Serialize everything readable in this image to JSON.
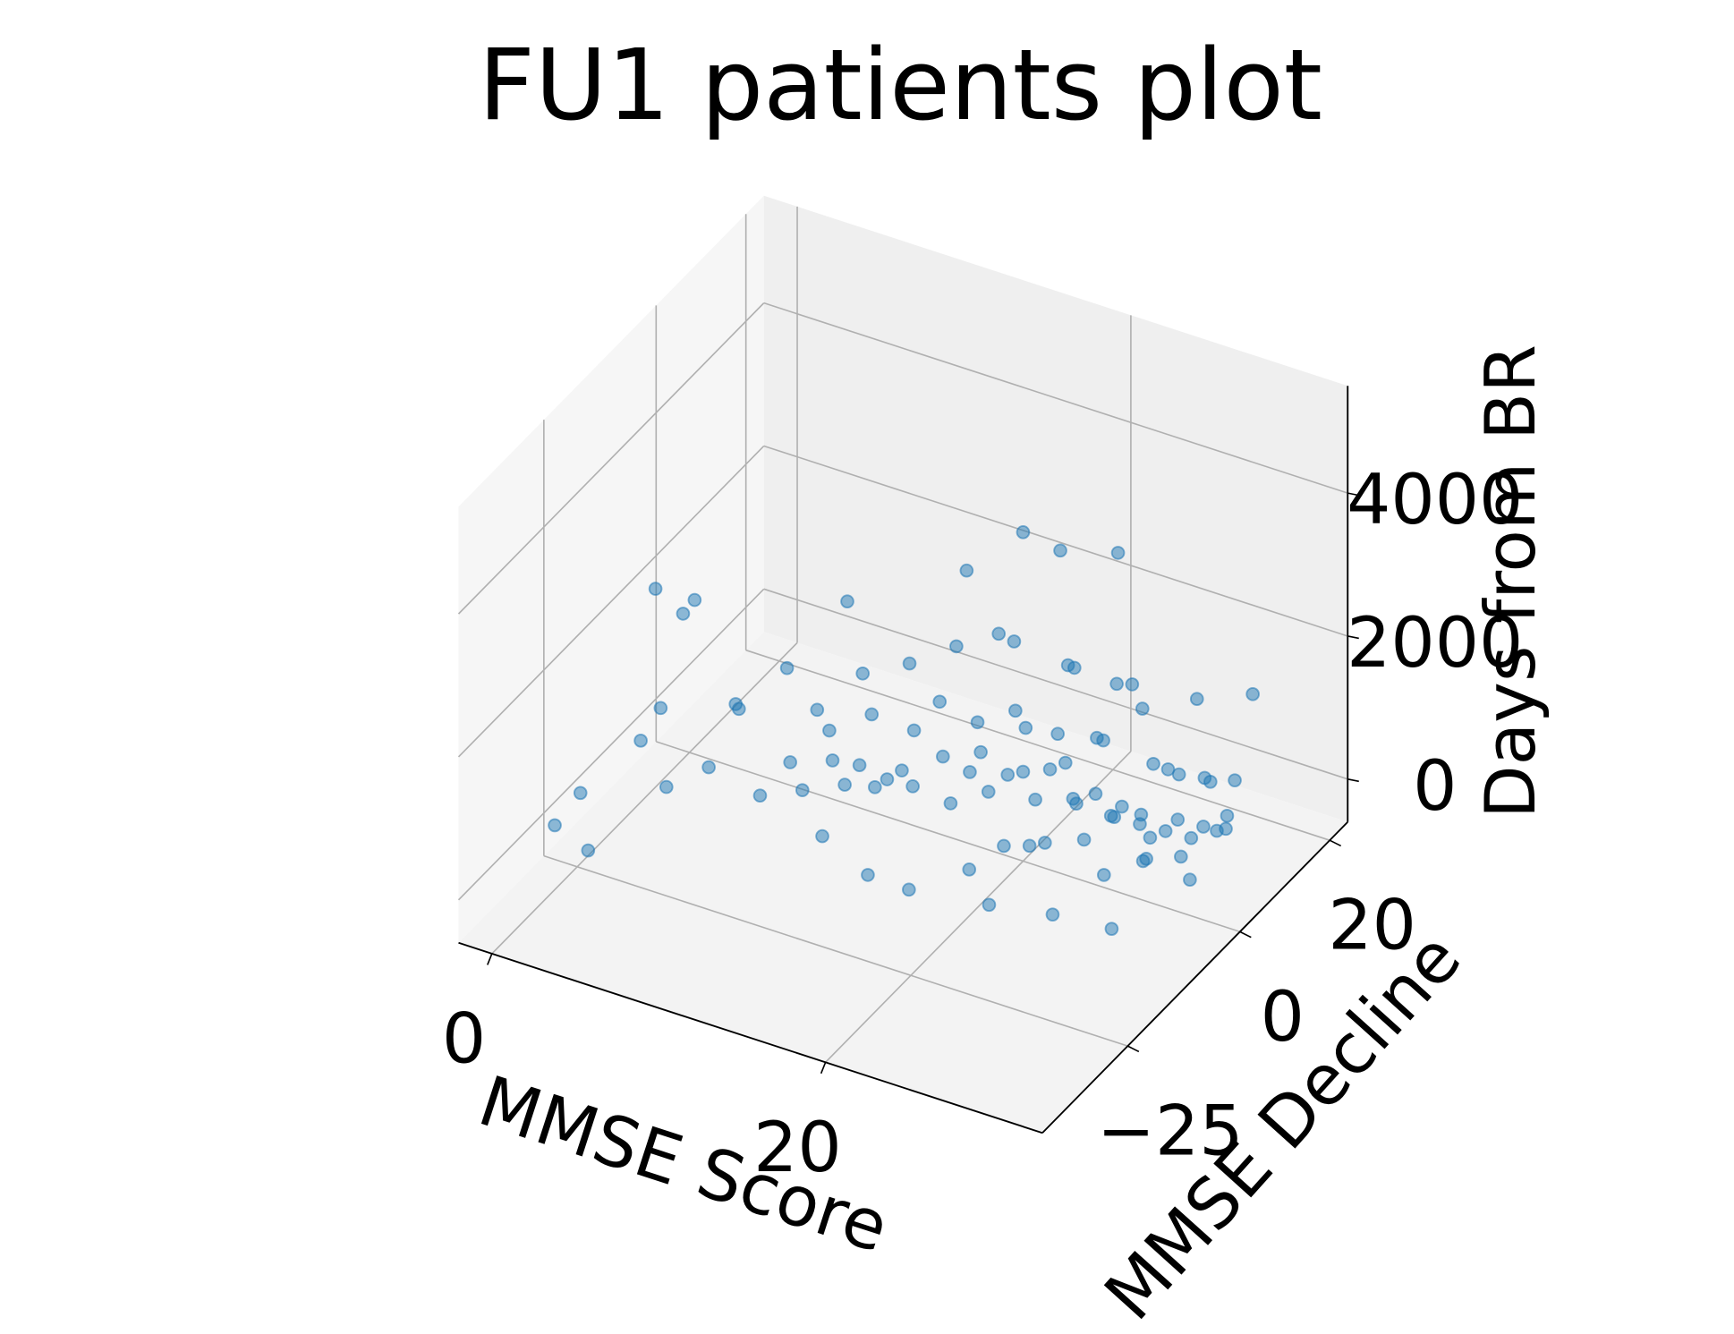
{
  "chart_data": {
    "type": "scatter3d",
    "title": "FU1 patients plot",
    "xlabel": "MMSE Score",
    "ylabel": "MMSE Decline",
    "zlabel": "Days from BR",
    "xlim": [
      -2,
      33
    ],
    "ylim": [
      -44,
      24
    ],
    "zlim": [
      -600,
      5500
    ],
    "xticks": [
      0,
      20
    ],
    "yticks": [
      {
        "value": -25,
        "label": "−25"
      },
      0,
      20
    ],
    "zticks": [
      0,
      2000,
      4000
    ],
    "grid": true,
    "series": [
      {
        "color": "#1f77b4",
        "x": [
          28,
          29,
          30,
          27,
          26,
          25,
          24,
          23,
          22,
          21,
          20,
          19,
          18,
          17,
          16,
          15,
          14,
          13,
          12,
          11,
          10,
          9,
          8,
          28,
          27,
          26,
          29,
          30,
          29,
          30,
          28,
          27,
          25,
          24,
          23,
          22,
          21,
          20,
          19,
          18,
          17,
          16,
          15,
          14,
          13,
          12,
          11,
          10,
          9,
          26,
          28,
          30,
          25,
          22,
          20,
          18,
          30,
          29,
          27,
          24,
          21,
          22,
          18,
          24,
          20,
          16,
          26,
          14,
          28,
          15,
          12,
          10,
          19,
          23,
          30,
          8,
          20,
          0,
          1,
          2,
          3,
          4,
          5,
          6,
          2,
          5,
          7,
          3,
          6,
          22,
          25,
          18,
          15,
          28,
          30,
          26,
          20,
          12,
          29
        ],
        "y": [
          2,
          4,
          6,
          0,
          -2,
          1,
          -3,
          0,
          2,
          -1,
          0,
          -4,
          -2,
          -5,
          -3,
          -6,
          -8,
          -7,
          -10,
          -9,
          -12,
          -11,
          -14,
          5,
          3,
          4,
          1,
          3,
          7,
          8,
          -3,
          -4,
          -5,
          3,
          5,
          -6,
          4,
          6,
          2,
          4,
          1,
          3,
          0,
          -2,
          -1,
          -4,
          -3,
          -6,
          -5,
          10,
          12,
          10,
          8,
          9,
          10,
          8,
          -2,
          -6,
          -8,
          -10,
          -8,
          4,
          2,
          6,
          -2,
          0,
          2,
          -3,
          9,
          6,
          -6,
          -2,
          12,
          10,
          14,
          -8,
          0,
          -30,
          -28,
          -30,
          -22,
          -20,
          -25,
          -18,
          -15,
          -20,
          -15,
          -10,
          -12,
          -15,
          -12,
          -18,
          -16,
          -10,
          0,
          6,
          -12,
          -15,
          12
        ],
        "z": [
          300,
          150,
          200,
          450,
          600,
          350,
          700,
          500,
          800,
          400,
          650,
          550,
          900,
          300,
          750,
          450,
          600,
          350,
          500,
          700,
          400,
          650,
          300,
          900,
          1100,
          250,
          600,
          450,
          800,
          100,
          200,
          950,
          400,
          1200,
          250,
          150,
          1000,
          300,
          1300,
          200,
          1050,
          150,
          1250,
          900,
          200,
          1100,
          250,
          850,
          1000,
          500,
          350,
          650,
          1400,
          700,
          1500,
          600,
          350,
          500,
          250,
          600,
          200,
          2000,
          2300,
          1800,
          2600,
          2100,
          2200,
          1900,
          1700,
          2700,
          1800,
          2400,
          2900,
          3300,
          1600,
          1700,
          4000,
          300,
          700,
          100,
          1200,
          500,
          2000,
          800,
          2800,
          3000,
          1500,
          2400,
          1300,
          -100,
          -200,
          0,
          -150,
          -300,
          -100,
          -200,
          50,
          100,
          -50
        ]
      }
    ]
  }
}
